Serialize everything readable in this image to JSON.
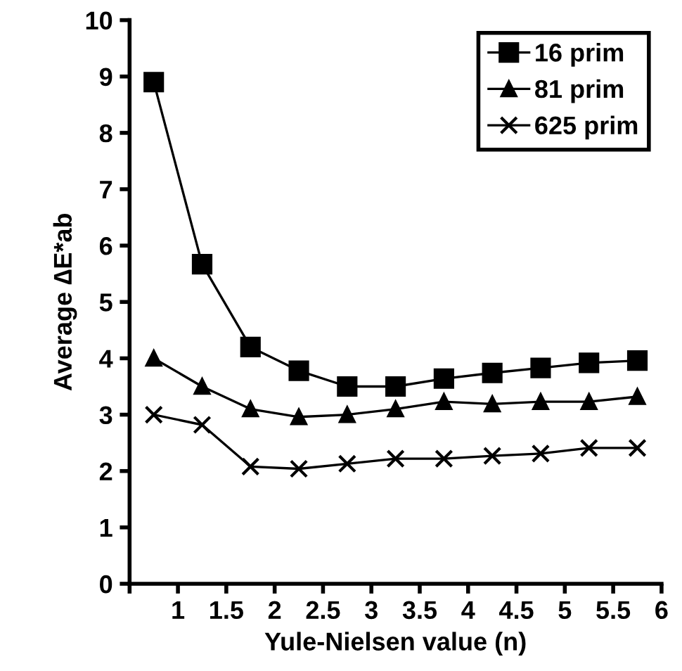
{
  "chart_data": {
    "type": "line",
    "xlabel": "Yule-Nielsen value (n)",
    "ylabel": "Average ∆E*ab",
    "x": [
      0.75,
      1.25,
      1.75,
      2.25,
      2.75,
      3.25,
      3.75,
      4.25,
      4.75,
      5.25,
      5.75
    ],
    "series": [
      {
        "name": "16 prim",
        "color": "#000000",
        "marker": "square",
        "values": [
          8.9,
          5.67,
          4.2,
          3.78,
          3.5,
          3.5,
          3.64,
          3.74,
          3.83,
          3.92,
          3.96
        ]
      },
      {
        "name": "81 prim",
        "color": "#000000",
        "marker": "triangle",
        "values": [
          4.0,
          3.5,
          3.1,
          2.96,
          3.0,
          3.1,
          3.23,
          3.19,
          3.23,
          3.23,
          3.32
        ]
      },
      {
        "name": "625 prim",
        "color": "#000000",
        "marker": "cross",
        "values": [
          3.0,
          2.82,
          2.08,
          2.04,
          2.13,
          2.22,
          2.22,
          2.27,
          2.31,
          2.41,
          2.41
        ]
      }
    ],
    "xlim": [
      0.5,
      6
    ],
    "xticks": [
      {
        "value": 0.5,
        "label": null
      },
      1,
      1.5,
      2,
      2.5,
      3,
      3.5,
      4,
      4.5,
      5,
      5.5,
      6
    ],
    "ylim": [
      0,
      10
    ],
    "yticks": [
      0,
      1,
      2,
      3,
      4,
      5,
      6,
      7,
      8,
      9,
      10
    ],
    "grid": false,
    "legend": "top right",
    "line_style": "solid"
  }
}
